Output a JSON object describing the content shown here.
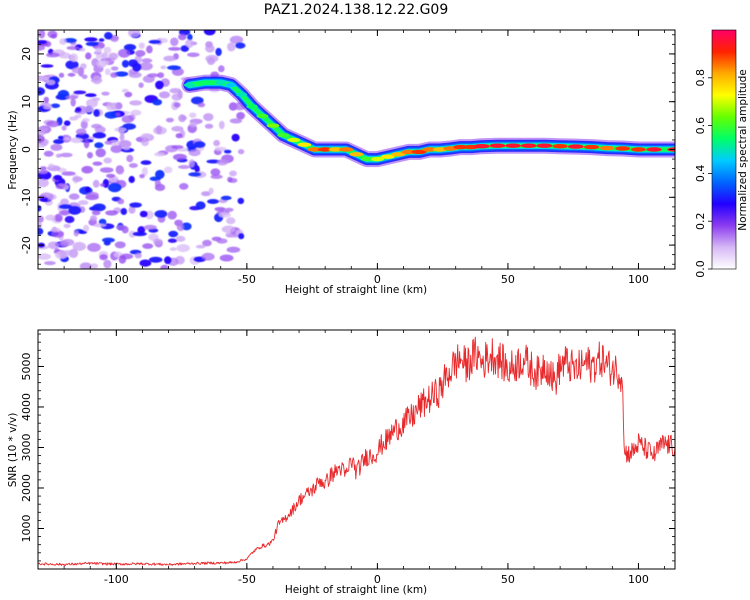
{
  "figure": {
    "title": "PAZ1.2024.138.12.22.G09"
  },
  "colors": {
    "axes": "#000000",
    "snr_line": "#e8292c",
    "ridge_low": "#6a00f0",
    "ridge_high": "#e81a3a",
    "noise": "#c9a0ee"
  },
  "chart_data": [
    {
      "type": "heatmap",
      "title": "",
      "xlabel": "Height of straight line (km)",
      "ylabel": "Frequency (Hz)",
      "xlim": [
        -130,
        114
      ],
      "ylim": [
        -25,
        25
      ],
      "x_ticks": [
        "-100",
        "-50",
        "0",
        "50",
        "100"
      ],
      "x_tick_values": [
        -100,
        -50,
        0,
        50,
        100
      ],
      "y_ticks": [
        "-20",
        "-10",
        "0",
        "10",
        "20"
      ],
      "y_tick_values": [
        -20,
        -10,
        0,
        10,
        20
      ],
      "colorbar": {
        "label": "Normalized spectral amplitude",
        "range": [
          0,
          1
        ],
        "ticks": [
          "0.0",
          "0.2",
          "0.4",
          "0.6",
          "0.8"
        ],
        "tick_values": [
          0,
          0.2,
          0.4,
          0.6,
          0.8
        ],
        "colormap": [
          "#ffffff",
          "#d6b8f5",
          "#8c3cf0",
          "#2200ff",
          "#0066ff",
          "#00ccff",
          "#00ff66",
          "#66ff00",
          "#ffff00",
          "#ffaa00",
          "#ff2200",
          "#ff0066"
        ]
      },
      "noise_region": {
        "x_range": [
          -130,
          -52
        ],
        "y_range": [
          -25,
          25
        ]
      },
      "ridge": {
        "x": [
          -72,
          -66,
          -60,
          -56,
          -52,
          -48,
          -44,
          -40,
          -36,
          -32,
          -28,
          -24,
          -20,
          -16,
          -12,
          -8,
          -4,
          0,
          4,
          8,
          12,
          16,
          20,
          24,
          28,
          32,
          36,
          40,
          46,
          52,
          58,
          64,
          70,
          76,
          82,
          88,
          94,
          100,
          106,
          114
        ],
        "y": [
          13.5,
          14,
          14,
          13.5,
          11.5,
          9,
          7,
          5,
          3,
          2,
          1,
          0,
          0,
          0,
          0,
          -1,
          -2,
          -2,
          -1.5,
          -1,
          -0.5,
          -0.5,
          0,
          0,
          0.2,
          0.5,
          0.5,
          0.7,
          0.8,
          0.8,
          0.8,
          0.8,
          0.7,
          0.6,
          0.5,
          0.3,
          0.2,
          0,
          0,
          0
        ],
        "amplitude": [
          0.5,
          0.55,
          0.5,
          0.45,
          0.5,
          0.55,
          0.6,
          0.65,
          0.6,
          0.7,
          0.75,
          0.85,
          0.9,
          0.8,
          0.85,
          0.8,
          0.6,
          0.7,
          0.75,
          0.8,
          0.85,
          0.9,
          0.85,
          0.8,
          0.85,
          0.9,
          0.9,
          0.95,
          0.95,
          0.95,
          0.95,
          0.95,
          0.9,
          0.95,
          0.9,
          0.85,
          0.9,
          0.9,
          0.95,
          0.95
        ]
      }
    },
    {
      "type": "line",
      "title": "",
      "xlabel": "Height of straight line (km)",
      "ylabel": "SNR (10 * v/v)",
      "xlim": [
        -130,
        114
      ],
      "ylim": [
        0,
        5900
      ],
      "x_ticks": [
        "-100",
        "-50",
        "0",
        "50",
        "100"
      ],
      "x_tick_values": [
        -100,
        -50,
        0,
        50,
        100
      ],
      "y_ticks": [
        "1000",
        "2000",
        "3000",
        "4000",
        "5000"
      ],
      "y_tick_values": [
        1000,
        2000,
        3000,
        4000,
        5000
      ],
      "series": [
        {
          "x": [
            -130,
            -120,
            -110,
            -100,
            -90,
            -80,
            -70,
            -60,
            -55,
            -50,
            -48,
            -45,
            -42,
            -40,
            -38,
            -36,
            -34,
            -32,
            -30,
            -28,
            -26,
            -24,
            -22,
            -20,
            -18,
            -16,
            -14,
            -12,
            -10,
            -8,
            -6,
            -4,
            -2,
            0,
            2,
            4,
            6,
            8,
            10,
            12,
            14,
            16,
            18,
            20,
            22,
            24,
            26,
            28,
            30,
            32,
            34,
            36,
            38,
            40,
            42,
            44,
            46,
            48,
            50,
            52,
            54,
            56,
            58,
            60,
            62,
            64,
            66,
            68,
            70,
            72,
            74,
            76,
            78,
            80,
            82,
            84,
            86,
            88,
            90,
            92,
            94,
            94.5,
            96,
            98,
            100,
            102,
            104,
            106,
            108,
            110,
            112,
            114
          ],
          "y": [
            130,
            110,
            140,
            120,
            130,
            110,
            140,
            150,
            160,
            250,
            400,
            550,
            600,
            700,
            1100,
            1200,
            1350,
            1500,
            1700,
            1800,
            1900,
            2000,
            2200,
            2100,
            2300,
            2400,
            2500,
            2300,
            2700,
            2400,
            2600,
            2800,
            2800,
            2900,
            3100,
            3200,
            3400,
            3500,
            3600,
            3700,
            3800,
            4000,
            4100,
            4200,
            4300,
            4400,
            4700,
            4900,
            5100,
            5200,
            5000,
            5200,
            5300,
            5100,
            5200,
            5300,
            5200,
            5100,
            4900,
            5000,
            5100,
            5200,
            5000,
            4900,
            4800,
            5100,
            4900,
            4600,
            5000,
            5100,
            5000,
            4900,
            5000,
            5100,
            5000,
            5100,
            5200,
            5000,
            4950,
            4900,
            4750,
            2900,
            2850,
            2900,
            3100,
            3000,
            2900,
            2800,
            3000,
            3100,
            3050,
            3000
          ]
        }
      ]
    }
  ]
}
